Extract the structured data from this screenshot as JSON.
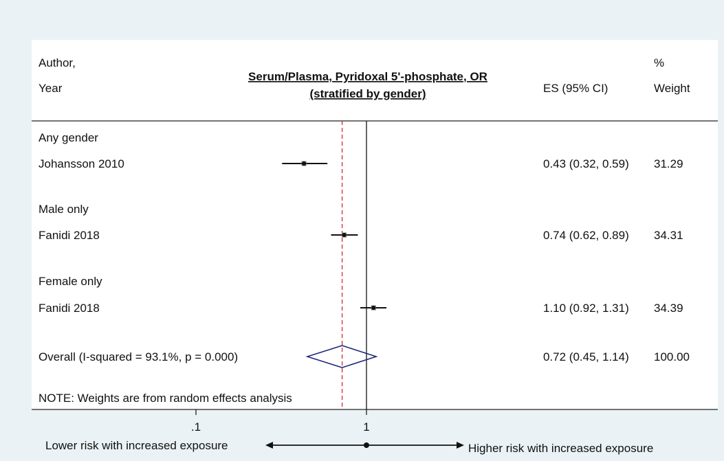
{
  "header": {
    "author_label": "Author,",
    "year_label": "Year",
    "title_line1": "Serum/Plasma, Pyridoxal 5'-phosphate, OR",
    "title_line2": "(stratified by gender)",
    "es_label": "ES (95% CI)",
    "pct_label": "%",
    "weight_label": "Weight"
  },
  "rows": [
    {
      "kind": "group",
      "label": "Any gender"
    },
    {
      "kind": "study",
      "label": "Johansson 2010",
      "es": 0.43,
      "lo": 0.32,
      "hi": 0.59,
      "es_text": "0.43 (0.32, 0.59)",
      "weight_text": "31.29"
    },
    {
      "kind": "group",
      "label": "Male only"
    },
    {
      "kind": "study",
      "label": "Fanidi 2018",
      "es": 0.74,
      "lo": 0.62,
      "hi": 0.89,
      "es_text": "0.74 (0.62, 0.89)",
      "weight_text": "34.31"
    },
    {
      "kind": "group",
      "label": "Female only"
    },
    {
      "kind": "study",
      "label": "Fanidi 2018",
      "es": 1.1,
      "lo": 0.92,
      "hi": 1.31,
      "es_text": "1.10 (0.92, 1.31)",
      "weight_text": "34.39"
    },
    {
      "kind": "overall",
      "label": "Overall  (I-squared = 93.1%, p = 0.000)",
      "es": 0.72,
      "lo": 0.45,
      "hi": 1.14,
      "es_text": "0.72 (0.45, 1.14)",
      "weight_text": "100.00"
    }
  ],
  "note": "NOTE: Weights are from random effects analysis",
  "axis": {
    "scale": "log",
    "ticks": [
      {
        "value": 0.1,
        "label": ".1"
      },
      {
        "value": 1,
        "label": "1"
      }
    ],
    "left_label": "Lower risk with increased exposure",
    "right_label": "Higher risk with increased exposure"
  },
  "colors": {
    "background": "#eaf2f5",
    "plot_background": "#ffffff",
    "dashed_line": "#d9272e",
    "diamond": "#1f2a7a",
    "ink": "#111111"
  },
  "chart_data": {
    "type": "forest",
    "title": "Serum/Plasma, Pyridoxal 5'-phosphate, OR (stratified by gender)",
    "x_scale": "log",
    "null_value": 1,
    "pooled_estimate": 0.72,
    "studies": [
      {
        "group": "Any gender",
        "study": "Johansson 2010",
        "es": 0.43,
        "ci": [
          0.32,
          0.59
        ],
        "weight": 31.29
      },
      {
        "group": "Male only",
        "study": "Fanidi 2018",
        "es": 0.74,
        "ci": [
          0.62,
          0.89
        ],
        "weight": 34.31
      },
      {
        "group": "Female only",
        "study": "Fanidi 2018",
        "es": 1.1,
        "ci": [
          0.92,
          1.31
        ],
        "weight": 34.39
      }
    ],
    "overall": {
      "es": 0.72,
      "ci": [
        0.45,
        1.14
      ],
      "weight": 100.0,
      "i_squared": "93.1%",
      "p": "0.000"
    },
    "x_ticks": [
      0.1,
      1
    ]
  }
}
